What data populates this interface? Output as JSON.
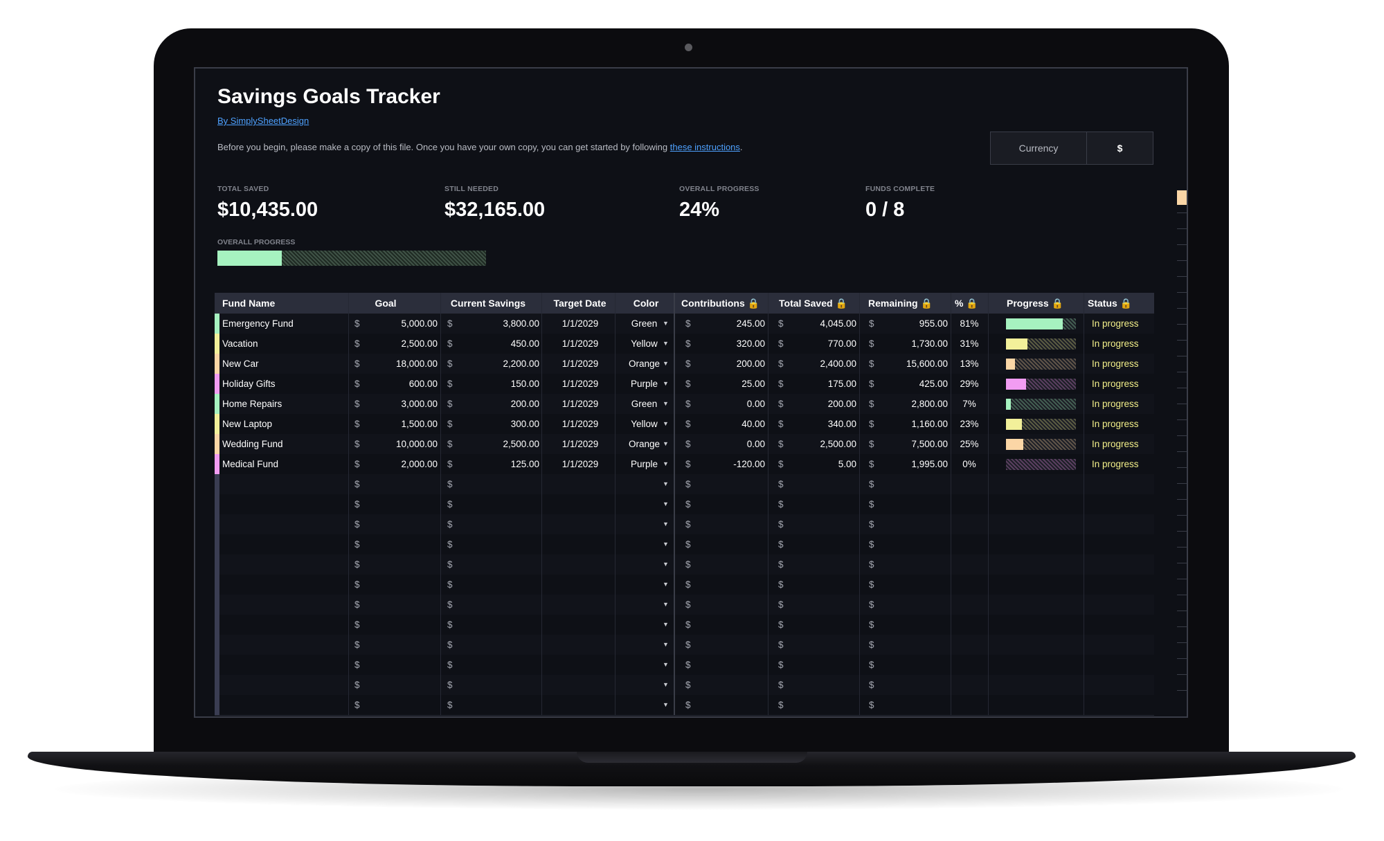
{
  "title": "Savings Goals Tracker",
  "byline": "By SimplySheetDesign",
  "intro": {
    "text": "Before you begin, please make a copy of this file. Once you have your own copy, you can get started by following ",
    "link": "these instructions",
    "end": "."
  },
  "currency": {
    "label": "Currency",
    "value": "$"
  },
  "stats": [
    {
      "label": "TOTAL SAVED",
      "value": "$10,435.00"
    },
    {
      "label": "STILL NEEDED",
      "value": "$32,165.00"
    },
    {
      "label": "OVERALL PROGRESS",
      "value": "24%"
    },
    {
      "label": "FUNDS COMPLETE",
      "value": "0 / 8"
    }
  ],
  "overall_progress": {
    "label": "OVERALL PROGRESS",
    "fraction": 0.24
  },
  "headers": {
    "fund": "Fund Name",
    "goal": "Goal",
    "current": "Current Savings",
    "date": "Target Date",
    "color": "Color",
    "contrib": "Contributions",
    "total": "Total Saved",
    "remaining": "Remaining",
    "pct": "%",
    "progress": "Progress",
    "status": "Status"
  },
  "lock_icon": "lock-icon",
  "currency_symbol": "$",
  "colors": {
    "Green": "#a6f2c0",
    "Yellow": "#f2f09a",
    "Orange": "#fbd6a6",
    "Purple": "#f29cf2",
    "empty": "#3a3d52"
  },
  "funds": [
    {
      "name": "Emergency Fund",
      "goal": "5,000.00",
      "current": "3,800.00",
      "date": "1/1/2029",
      "color": "Green",
      "contrib": "245.00",
      "total": "4,045.00",
      "remaining": "955.00",
      "pct": "81%",
      "progress": 0.81,
      "status": "In progress"
    },
    {
      "name": "Vacation",
      "goal": "2,500.00",
      "current": "450.00",
      "date": "1/1/2029",
      "color": "Yellow",
      "contrib": "320.00",
      "total": "770.00",
      "remaining": "1,730.00",
      "pct": "31%",
      "progress": 0.31,
      "status": "In progress"
    },
    {
      "name": "New Car",
      "goal": "18,000.00",
      "current": "2,200.00",
      "date": "1/1/2029",
      "color": "Orange",
      "contrib": "200.00",
      "total": "2,400.00",
      "remaining": "15,600.00",
      "pct": "13%",
      "progress": 0.13,
      "status": "In progress"
    },
    {
      "name": "Holiday Gifts",
      "goal": "600.00",
      "current": "150.00",
      "date": "1/1/2029",
      "color": "Purple",
      "contrib": "25.00",
      "total": "175.00",
      "remaining": "425.00",
      "pct": "29%",
      "progress": 0.29,
      "status": "In progress"
    },
    {
      "name": "Home Repairs",
      "goal": "3,000.00",
      "current": "200.00",
      "date": "1/1/2029",
      "color": "Green",
      "contrib": "0.00",
      "total": "200.00",
      "remaining": "2,800.00",
      "pct": "7%",
      "progress": 0.07,
      "status": "In progress"
    },
    {
      "name": "New Laptop",
      "goal": "1,500.00",
      "current": "300.00",
      "date": "1/1/2029",
      "color": "Yellow",
      "contrib": "40.00",
      "total": "340.00",
      "remaining": "1,160.00",
      "pct": "23%",
      "progress": 0.23,
      "status": "In progress"
    },
    {
      "name": "Wedding Fund",
      "goal": "10,000.00",
      "current": "2,500.00",
      "date": "1/1/2029",
      "color": "Orange",
      "contrib": "0.00",
      "total": "2,500.00",
      "remaining": "7,500.00",
      "pct": "25%",
      "progress": 0.25,
      "status": "In progress"
    },
    {
      "name": "Medical Fund",
      "goal": "2,000.00",
      "current": "125.00",
      "date": "1/1/2029",
      "color": "Purple",
      "contrib": "-120.00",
      "total": "5.00",
      "remaining": "1,995.00",
      "pct": "0%",
      "progress": 0.0,
      "status": "In progress"
    }
  ],
  "empty_rows": 12
}
